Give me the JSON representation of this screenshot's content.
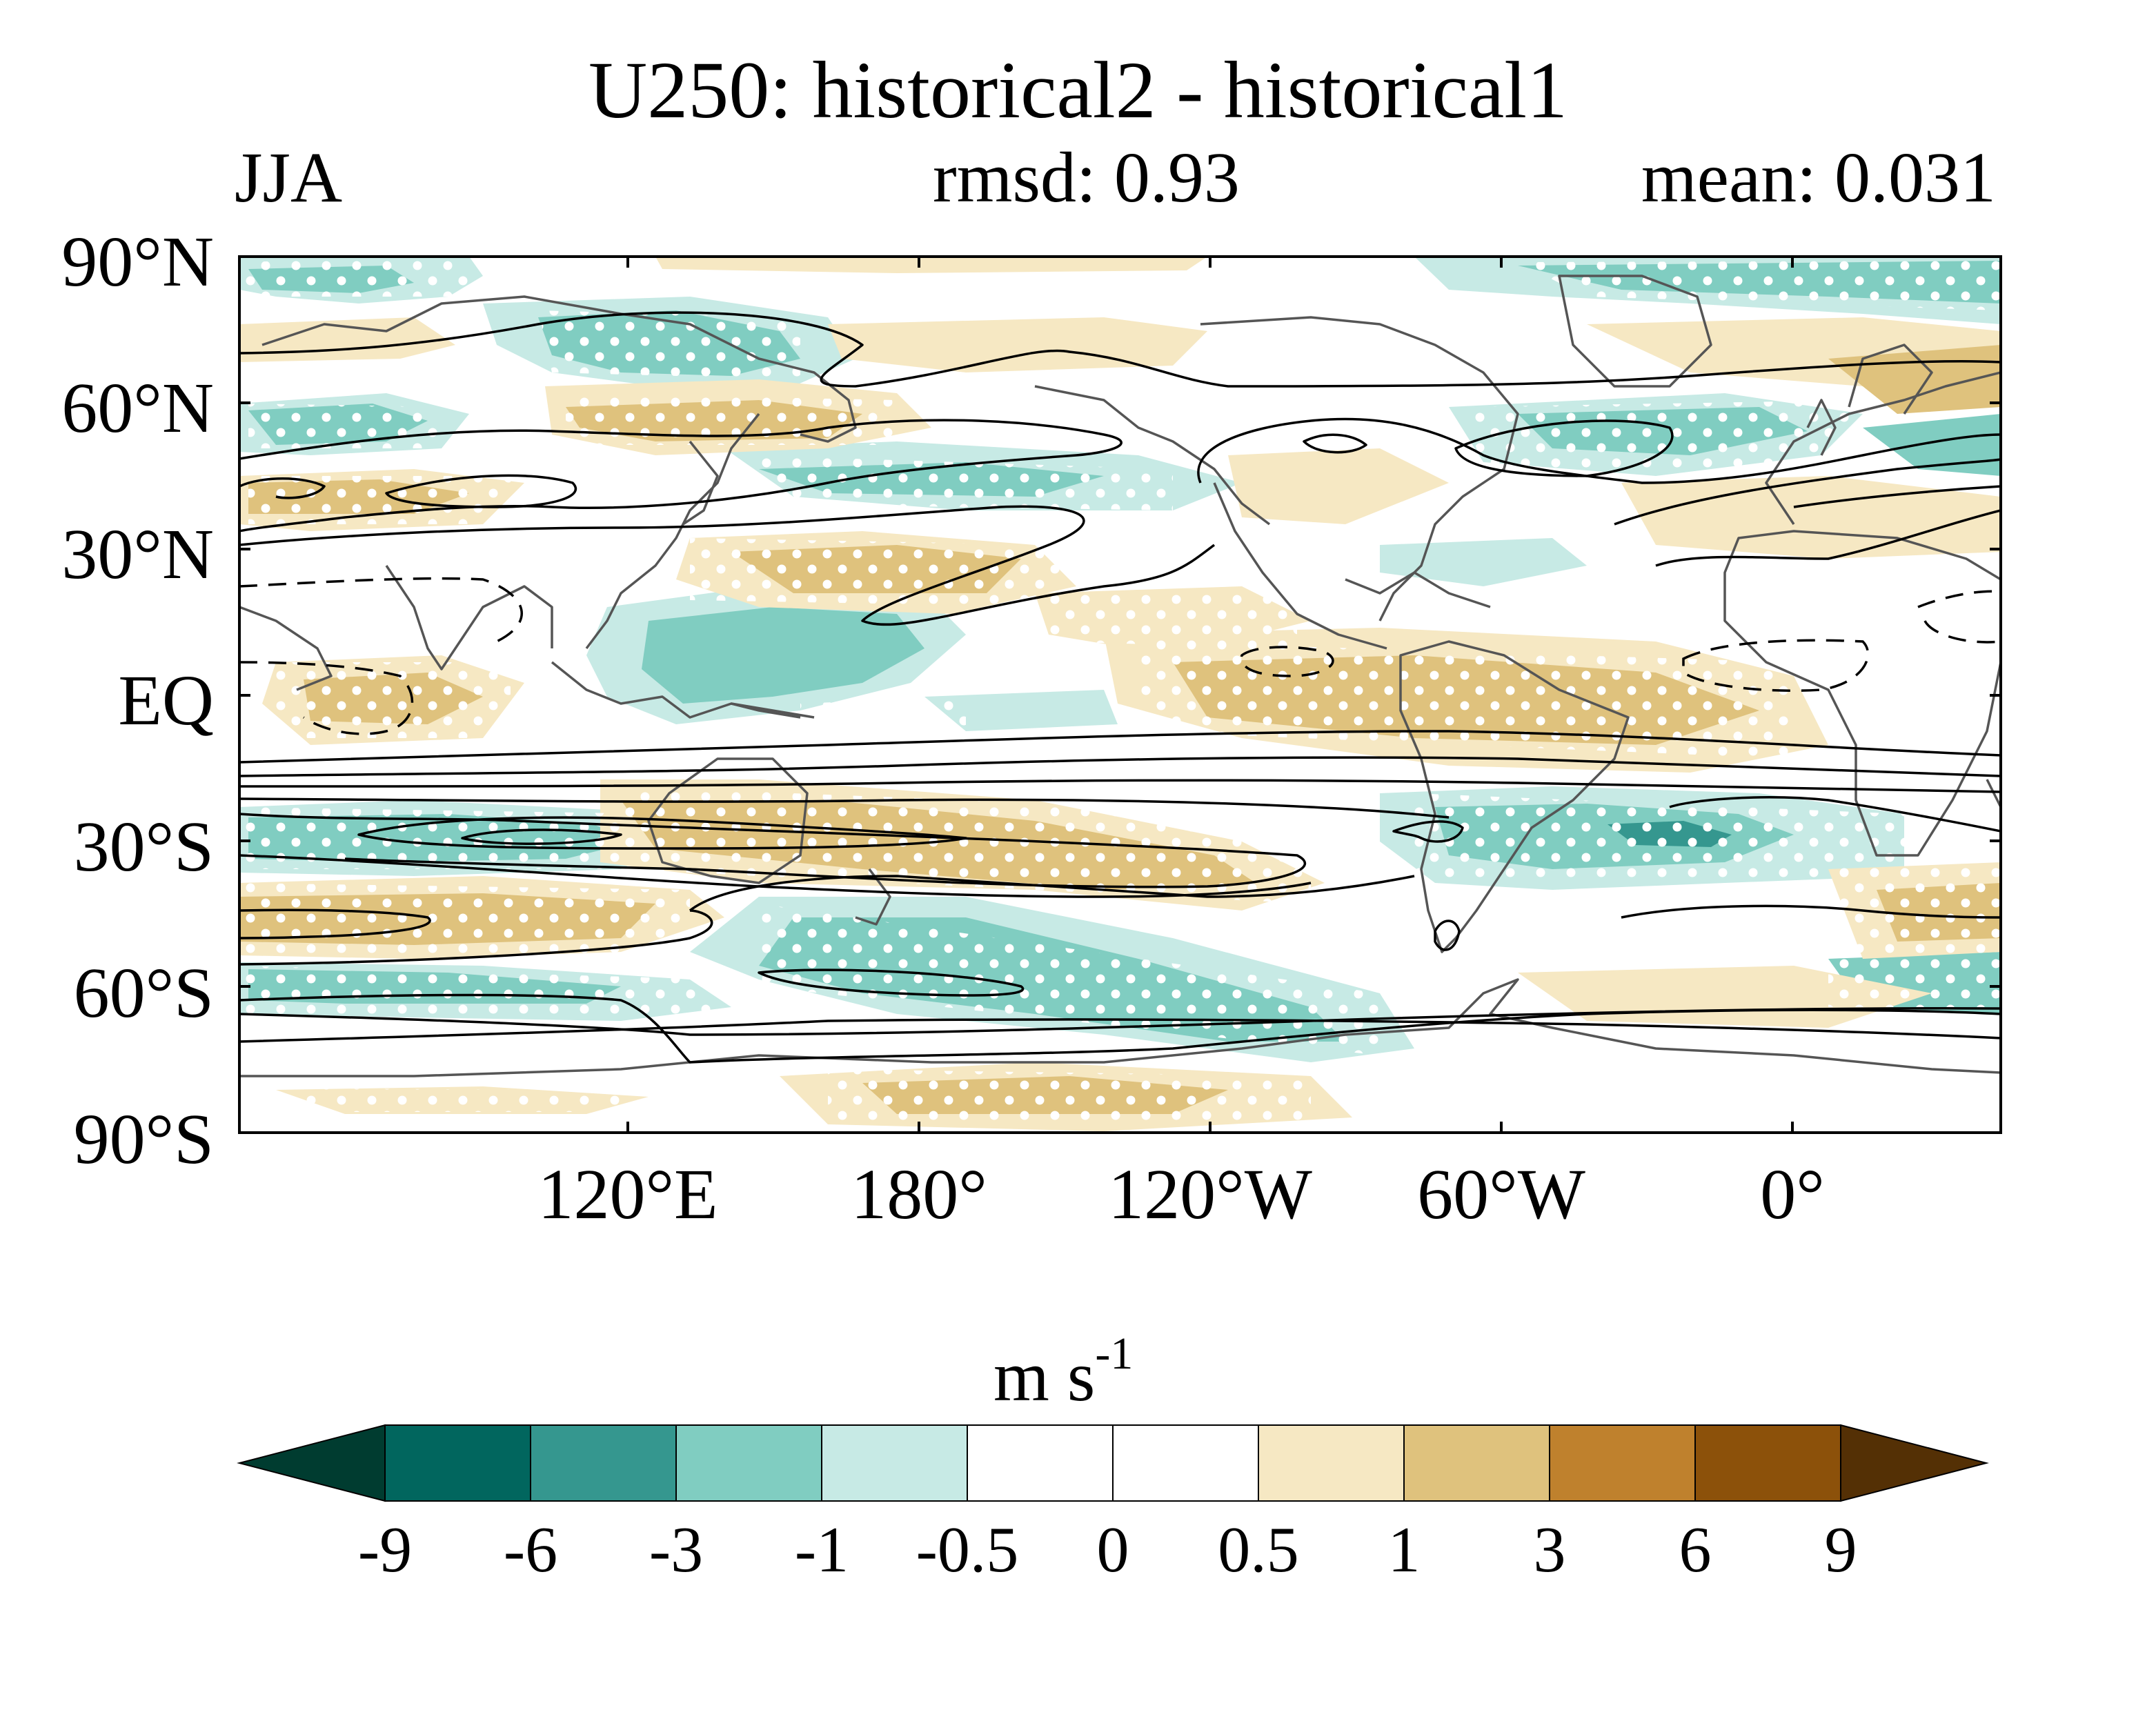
{
  "figure": {
    "title": "U250: historical2 - historical1",
    "season": "JJA",
    "rmsd_label": "rmsd: 0.93",
    "mean_label": "mean: 0.031",
    "units_base": "m s",
    "units_exp": "-1"
  },
  "axes": {
    "y_ticks": [
      "90°N",
      "60°N",
      "30°N",
      "EQ",
      "30°S",
      "60°S",
      "90°S"
    ],
    "x_ticks": [
      "120°E",
      "180°",
      "120°W",
      "60°W",
      "0°"
    ]
  },
  "colorbar": {
    "labels": [
      "-9",
      "-6",
      "-3",
      "-1",
      "-0.5",
      "0",
      "0.5",
      "1",
      "3",
      "6",
      "9"
    ],
    "colors": [
      "#01665e",
      "#35978f",
      "#80cdc1",
      "#c7eae5",
      "#ffffff",
      "#ffffff",
      "#f6e8c3",
      "#dfc27d",
      "#bf812d",
      "#8c510a"
    ],
    "under_color": "#003c30",
    "over_color": "#543005"
  },
  "colors": {
    "neg_strong": "#35978f",
    "neg": "#80cdc1",
    "neg_weak": "#c7eae5",
    "pos_weak": "#f6e8c3",
    "pos": "#dfc27d",
    "coast": "#555555",
    "contour": "#000000"
  }
}
